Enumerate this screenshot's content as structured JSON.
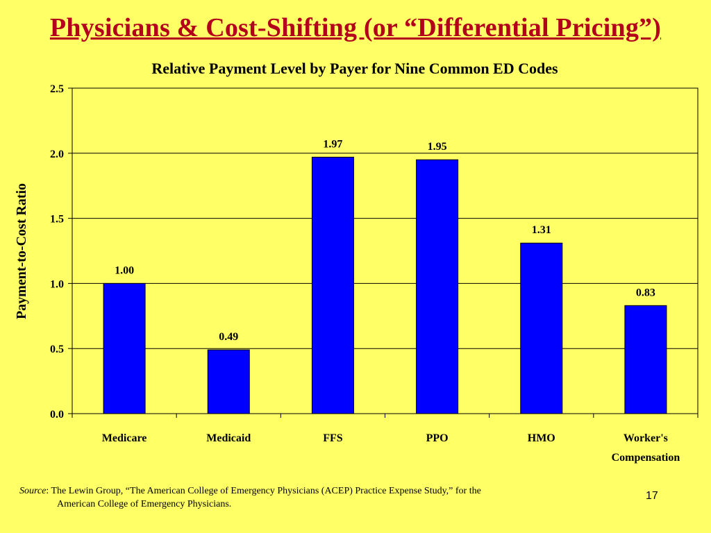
{
  "slide": {
    "title": "Physicians & Cost-Shifting (or “Differential Pricing”)",
    "page_number": "17"
  },
  "source": {
    "label": "Source",
    "line1": ": The Lewin Group, “The American College of Emergency Physicians (ACEP) Practice Expense Study,” for the",
    "line2": "American College of Emergency Physicians."
  },
  "colors": {
    "background": "#ffff66",
    "title": "#b3001b",
    "bar_fill": "#0000ff",
    "bar_stroke": "#000000"
  },
  "chart_data": {
    "type": "bar",
    "title": "Relative Payment Level by Payer for Nine Common ED Codes",
    "xlabel": "",
    "ylabel": "Payment-to-Cost Ratio",
    "categories": [
      "Medicare",
      "Medicaid",
      "FFS",
      "PPO",
      "HMO",
      "Worker's Compensation"
    ],
    "category_lines": [
      [
        "Medicare"
      ],
      [
        "Medicaid"
      ],
      [
        "FFS"
      ],
      [
        "PPO"
      ],
      [
        "HMO"
      ],
      [
        "Worker's",
        "Compensation"
      ]
    ],
    "values": [
      1.0,
      0.49,
      1.97,
      1.95,
      1.31,
      0.83
    ],
    "data_labels": [
      "1.00",
      "0.49",
      "1.97",
      "1.95",
      "1.31",
      "0.83"
    ],
    "ylim": [
      0,
      2.5
    ],
    "yticks": [
      0,
      0.5,
      1.0,
      1.5,
      2.0,
      2.5
    ],
    "ytick_labels": [
      "0.0",
      "0.5",
      "1.0",
      "1.5",
      "2.0",
      "2.5"
    ],
    "grid": true,
    "legend": "none"
  }
}
